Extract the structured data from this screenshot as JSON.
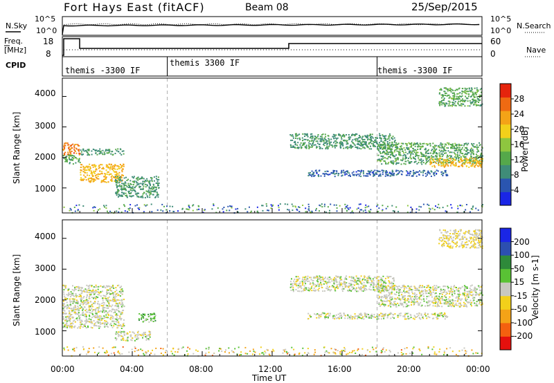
{
  "header": {
    "title": "Fort Hays East (fitACF)",
    "beam": "Beam 08",
    "date": "25/Sep/2015"
  },
  "top_panels": {
    "nsky_label": "N.Sky",
    "nsky_ticks": [
      "10^5",
      "10^0"
    ],
    "nsearch_label": "N.Search",
    "nsearch_ticks": [
      "10^5",
      "10^0"
    ],
    "freq_label_line1": "Freq.",
    "freq_label_line2": "[MHz]",
    "freq_ticks": [
      "18",
      "8"
    ],
    "nave_label": "Nave",
    "nave_ticks": [
      "60",
      "0"
    ],
    "cpid_label": "CPID",
    "cpid_segments": [
      {
        "label": "themis -3300 IF",
        "start_hour": 0
      },
      {
        "label": "themis 3300 IF",
        "start_hour": 6
      },
      {
        "label": "themis -3300 IF",
        "start_hour": 18
      }
    ]
  },
  "chart_data": [
    {
      "type": "heatmap",
      "title": "",
      "ylabel": "Slant Range [km]",
      "ylim": [
        180,
        4600
      ],
      "y_ticks": [
        "4000",
        "3000",
        "2000",
        "1000"
      ],
      "x_range_hours": [
        0,
        24
      ],
      "colorbar": {
        "label": "Power [dB]",
        "range": [
          0,
          32
        ],
        "ticks": [
          "28",
          "24",
          "20",
          "16",
          "12",
          "8",
          "4"
        ],
        "colors": [
          "#1a26e6",
          "#2a55b0",
          "#3f8c78",
          "#55a84a",
          "#8ec63f",
          "#f2d01a",
          "#f4a317",
          "#ef6a12",
          "#e5240d"
        ]
      },
      "echo_regions": [
        {
          "hours": [
            0.0,
            1.0
          ],
          "range_km": [
            2100,
            2500
          ],
          "value": 26
        },
        {
          "hours": [
            0.0,
            1.0
          ],
          "range_km": [
            1800,
            2100
          ],
          "value": 12
        },
        {
          "hours": [
            1.0,
            3.5
          ],
          "range_km": [
            1200,
            1800
          ],
          "value": 22
        },
        {
          "hours": [
            1.0,
            3.5
          ],
          "range_km": [
            2100,
            2300
          ],
          "value": 10
        },
        {
          "hours": [
            3.0,
            5.5
          ],
          "range_km": [
            700,
            1400
          ],
          "value": 10
        },
        {
          "hours": [
            13.0,
            19.0
          ],
          "range_km": [
            2300,
            2800
          ],
          "value": 10
        },
        {
          "hours": [
            14.0,
            22.0
          ],
          "range_km": [
            1400,
            1600
          ],
          "value": 6
        },
        {
          "hours": [
            18.0,
            24.0
          ],
          "range_km": [
            1800,
            2500
          ],
          "value": 12
        },
        {
          "hours": [
            21.0,
            24.0
          ],
          "range_km": [
            1700,
            2000
          ],
          "value": 22
        },
        {
          "hours": [
            21.5,
            24.0
          ],
          "range_km": [
            3700,
            4300
          ],
          "value": 12
        },
        {
          "hours": [
            0.0,
            24.0
          ],
          "range_km": [
            200,
            500
          ],
          "value": 8
        }
      ]
    },
    {
      "type": "heatmap",
      "title": "",
      "ylabel": "Slant Range [km]",
      "xlabel": "Time UT",
      "ylim": [
        180,
        4600
      ],
      "y_ticks": [
        "4000",
        "3000",
        "2000",
        "1000"
      ],
      "x_ticks": [
        "00:00",
        "04:00",
        "08:00",
        "12:00",
        "16:00",
        "20:00",
        "00:00"
      ],
      "x_range_hours": [
        0,
        24
      ],
      "colorbar": {
        "label": "Velocity [m s-1]",
        "range": [
          -250,
          250
        ],
        "ticks": [
          "200",
          "100",
          "50",
          "15",
          "-15",
          "-50",
          "-100",
          "-200"
        ],
        "colors": [
          "#e5100d",
          "#f4600f",
          "#f4a317",
          "#f2d01a",
          "#c8c8c0",
          "#59c234",
          "#2e8a3a",
          "#2c4fb0",
          "#1a26e6"
        ]
      },
      "echo_regions": [
        {
          "hours": [
            0.0,
            3.5
          ],
          "range_km": [
            1100,
            2500
          ],
          "value": 0
        },
        {
          "hours": [
            3.0,
            5.0
          ],
          "range_km": [
            700,
            1000
          ],
          "value": 0
        },
        {
          "hours": [
            4.3,
            5.3
          ],
          "range_km": [
            1300,
            1600
          ],
          "value": 60
        },
        {
          "hours": [
            13.0,
            19.0
          ],
          "range_km": [
            2300,
            2800
          ],
          "value": 0
        },
        {
          "hours": [
            14.0,
            22.0
          ],
          "range_km": [
            1400,
            1600
          ],
          "value": 0
        },
        {
          "hours": [
            18.0,
            24.0
          ],
          "range_km": [
            1800,
            2500
          ],
          "value": 0
        },
        {
          "hours": [
            21.5,
            24.0
          ],
          "range_km": [
            3700,
            4300
          ],
          "value": -30
        },
        {
          "hours": [
            0.0,
            24.0
          ],
          "range_km": [
            200,
            500
          ],
          "value": -40
        }
      ]
    }
  ],
  "colors": {
    "axis": "#000000",
    "dashed": "#b0b0b0"
  }
}
